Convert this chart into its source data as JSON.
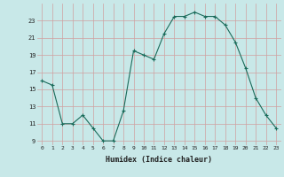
{
  "x": [
    0,
    1,
    2,
    3,
    4,
    5,
    6,
    7,
    8,
    9,
    10,
    11,
    12,
    13,
    14,
    15,
    16,
    17,
    18,
    19,
    20,
    21,
    22,
    23
  ],
  "y": [
    16.0,
    15.5,
    11.0,
    11.0,
    12.0,
    10.5,
    9.0,
    9.0,
    12.5,
    19.5,
    19.0,
    18.5,
    21.5,
    23.5,
    23.5,
    24.0,
    23.5,
    23.5,
    22.5,
    20.5,
    17.5,
    14.0,
    12.0,
    10.5
  ],
  "xlabel": "Humidex (Indice chaleur)",
  "xlim": [
    -0.5,
    23.5
  ],
  "ylim": [
    8.5,
    25.0
  ],
  "yticks": [
    9,
    11,
    13,
    15,
    17,
    19,
    21,
    23
  ],
  "xticks": [
    0,
    1,
    2,
    3,
    4,
    5,
    6,
    7,
    8,
    9,
    10,
    11,
    12,
    13,
    14,
    15,
    16,
    17,
    18,
    19,
    20,
    21,
    22,
    23
  ],
  "line_color": "#1a6b5a",
  "marker": "+",
  "marker_color": "#1a6b5a",
  "bg_color": "#c8e8e8",
  "grid_color": "#d0a0a0",
  "tick_label_color": "#222222",
  "xlabel_color": "#222222",
  "figsize": [
    3.2,
    2.0
  ],
  "dpi": 100
}
